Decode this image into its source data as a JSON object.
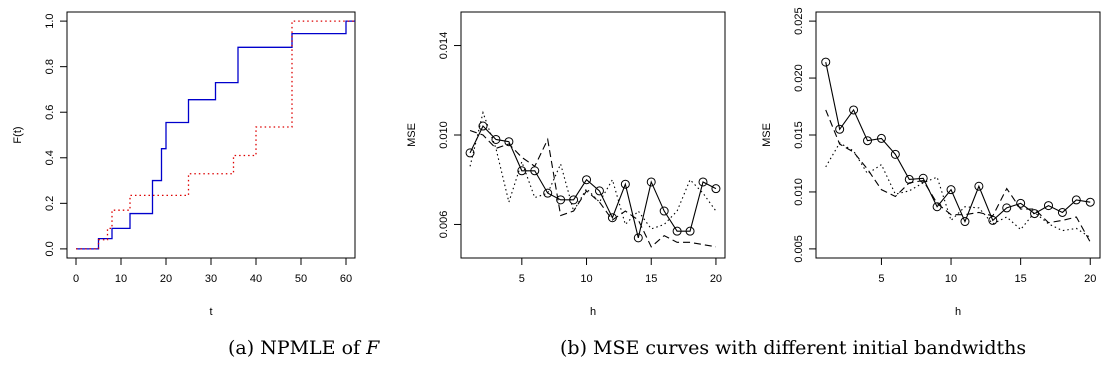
{
  "captions": {
    "a_prefix": "(a) NPMLE of ",
    "a_var": "F",
    "b": "(b) MSE curves with different initial bandwidths"
  },
  "chart_data": [
    {
      "type": "line",
      "step": true,
      "xlabel": "t",
      "ylabel": "F(t)",
      "xlim": [
        -2,
        62
      ],
      "ylim": [
        -0.04,
        1.04
      ],
      "xticks": [
        0,
        10,
        20,
        30,
        40,
        50,
        60
      ],
      "yticks": [
        0.0,
        0.2,
        0.4,
        0.6,
        0.8,
        1.0
      ],
      "xtick_labels": [
        "0",
        "10",
        "20",
        "30",
        "40",
        "50",
        "60"
      ],
      "ytick_labels": [
        "0.0",
        "0.2",
        "0.4",
        "0.6",
        "0.8",
        "1.0"
      ],
      "series": [
        {
          "color": "#0000cc",
          "dash": "solid",
          "x": [
            0,
            5,
            8,
            12,
            17,
            19,
            20,
            25,
            31,
            36,
            48,
            60,
            62
          ],
          "y": [
            0.0,
            0.045,
            0.09,
            0.155,
            0.3,
            0.44,
            0.555,
            0.655,
            0.73,
            0.885,
            0.945,
            1.0,
            1.0
          ]
        },
        {
          "color": "#dd0000",
          "dash": "dotted",
          "x": [
            0,
            5,
            7,
            8,
            12,
            25,
            35,
            40,
            48,
            62
          ],
          "y": [
            0.0,
            0.04,
            0.09,
            0.17,
            0.235,
            0.33,
            0.41,
            0.535,
            1.0,
            1.0
          ]
        }
      ]
    },
    {
      "type": "line",
      "xlabel": "h",
      "ylabel": "MSE",
      "xlim": [
        0.3,
        20.7
      ],
      "ylim": [
        0.0045,
        0.0155
      ],
      "xticks": [
        5,
        10,
        15,
        20
      ],
      "yticks": [
        0.006,
        0.01,
        0.014
      ],
      "xtick_labels": [
        "5",
        "10",
        "15",
        "20"
      ],
      "ytick_labels": [
        "0.006",
        "0.010",
        "0.014"
      ],
      "x": [
        1,
        2,
        3,
        4,
        5,
        6,
        7,
        8,
        9,
        10,
        11,
        12,
        13,
        14,
        15,
        16,
        17,
        18,
        19,
        20
      ],
      "series": [
        {
          "dash": "solid",
          "markers": true,
          "values": [
            0.0092,
            0.0104,
            0.0098,
            0.0097,
            0.0084,
            0.0084,
            0.0074,
            0.0071,
            0.0071,
            0.008,
            0.0075,
            0.0063,
            0.0078,
            0.0054,
            0.0079,
            0.0066,
            0.0057,
            0.0057,
            0.0079,
            0.0076
          ]
        },
        {
          "dash": "dashed",
          "markers": false,
          "values": [
            0.0102,
            0.01,
            0.0094,
            0.0096,
            0.009,
            0.0086,
            0.0098,
            0.0064,
            0.0066,
            0.0075,
            0.007,
            0.0062,
            0.0066,
            0.0062,
            0.005,
            0.0055,
            0.0052,
            0.0052,
            0.0051,
            0.005
          ]
        },
        {
          "dash": "dotted",
          "markers": false,
          "values": [
            0.0086,
            0.011,
            0.0094,
            0.007,
            0.0088,
            0.0072,
            0.0074,
            0.0087,
            0.0066,
            0.0076,
            0.007,
            0.008,
            0.006,
            0.0066,
            0.0058,
            0.006,
            0.0066,
            0.008,
            0.0074,
            0.0066
          ]
        }
      ]
    },
    {
      "type": "line",
      "xlabel": "h",
      "ylabel": "MSE",
      "xlim": [
        0.3,
        20.7
      ],
      "ylim": [
        0.0042,
        0.0258
      ],
      "xticks": [
        5,
        10,
        15,
        20
      ],
      "yticks": [
        0.005,
        0.01,
        0.015,
        0.02,
        0.025
      ],
      "xtick_labels": [
        "5",
        "10",
        "15",
        "20"
      ],
      "ytick_labels": [
        "0.005",
        "0.010",
        "0.015",
        "0.020",
        "0.025"
      ],
      "x": [
        1,
        2,
        3,
        4,
        5,
        6,
        7,
        8,
        9,
        10,
        11,
        12,
        13,
        14,
        15,
        16,
        17,
        18,
        19,
        20
      ],
      "series": [
        {
          "dash": "solid",
          "markers": true,
          "values": [
            0.0214,
            0.0155,
            0.0172,
            0.0145,
            0.0147,
            0.0133,
            0.0111,
            0.0112,
            0.0087,
            0.0102,
            0.0074,
            0.0105,
            0.0075,
            0.0086,
            0.009,
            0.0081,
            0.0088,
            0.0082,
            0.0093,
            0.0091
          ]
        },
        {
          "dash": "dashed",
          "markers": false,
          "values": [
            0.0172,
            0.0142,
            0.0135,
            0.012,
            0.0102,
            0.0096,
            0.0108,
            0.011,
            0.009,
            0.008,
            0.008,
            0.0082,
            0.0079,
            0.0103,
            0.0085,
            0.0085,
            0.0073,
            0.0075,
            0.0078,
            0.0056
          ]
        },
        {
          "dash": "dotted",
          "markers": false,
          "values": [
            0.0122,
            0.0143,
            0.0136,
            0.0116,
            0.0124,
            0.0098,
            0.0101,
            0.0108,
            0.0113,
            0.0075,
            0.0087,
            0.0086,
            0.0072,
            0.0078,
            0.0067,
            0.0082,
            0.0072,
            0.0066,
            0.0068,
            0.006
          ]
        }
      ]
    }
  ]
}
